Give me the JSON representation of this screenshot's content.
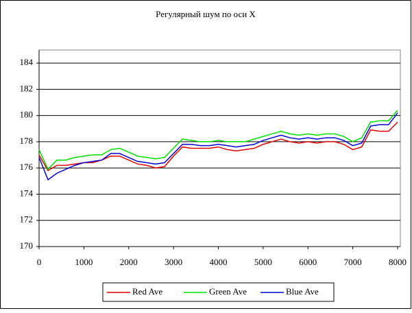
{
  "chart_data": {
    "type": "line",
    "title": "Регулярный шум по оси X",
    "x": [
      0,
      200,
      400,
      600,
      800,
      1000,
      1200,
      1400,
      1600,
      1800,
      2000,
      2200,
      2400,
      2600,
      2800,
      3000,
      3200,
      3400,
      3600,
      3800,
      4000,
      4200,
      4400,
      4600,
      4800,
      5000,
      5200,
      5400,
      5600,
      5800,
      6000,
      6200,
      6400,
      6600,
      6800,
      7000,
      7200,
      7400,
      7600,
      7800,
      8000
    ],
    "series": [
      {
        "name": "Red Ave",
        "color": "#e00000",
        "values": [
          177.0,
          175.8,
          176.2,
          176.2,
          176.3,
          176.4,
          176.4,
          176.6,
          176.9,
          176.9,
          176.6,
          176.3,
          176.2,
          176.0,
          176.1,
          176.9,
          177.6,
          177.5,
          177.5,
          177.5,
          177.6,
          177.4,
          177.3,
          177.4,
          177.5,
          177.8,
          178.0,
          178.2,
          178.0,
          177.9,
          178.0,
          177.9,
          178.0,
          178.0,
          177.8,
          177.4,
          177.6,
          178.9,
          178.8,
          178.8,
          179.5
        ]
      },
      {
        "name": "Green Ave",
        "color": "#00e000",
        "values": [
          177.4,
          175.9,
          176.6,
          176.6,
          176.8,
          176.9,
          177.0,
          177.0,
          177.4,
          177.5,
          177.2,
          176.9,
          176.8,
          176.7,
          176.8,
          177.5,
          178.2,
          178.1,
          178.0,
          178.0,
          178.1,
          178.0,
          178.0,
          178.0,
          178.2,
          178.4,
          178.6,
          178.8,
          178.6,
          178.5,
          178.6,
          178.5,
          178.6,
          178.6,
          178.4,
          178.0,
          178.3,
          179.5,
          179.6,
          179.6,
          180.4
        ]
      },
      {
        "name": "Blue Ave",
        "color": "#0000d0",
        "values": [
          176.8,
          175.1,
          175.6,
          175.9,
          176.2,
          176.4,
          176.5,
          176.6,
          177.1,
          177.1,
          176.8,
          176.5,
          176.4,
          176.3,
          176.4,
          177.1,
          177.8,
          177.8,
          177.7,
          177.7,
          177.8,
          177.7,
          177.6,
          177.7,
          177.8,
          178.1,
          178.3,
          178.5,
          178.3,
          178.2,
          178.3,
          178.2,
          178.3,
          178.3,
          178.1,
          177.7,
          177.9,
          179.2,
          179.3,
          179.3,
          180.2
        ]
      }
    ],
    "xlim": [
      0,
      8000
    ],
    "xticks": [
      0,
      1000,
      2000,
      3000,
      4000,
      5000,
      6000,
      7000,
      8000
    ],
    "ylim": [
      170,
      185
    ],
    "yticks": [
      170,
      172,
      174,
      176,
      178,
      180,
      182,
      184
    ],
    "grid": true,
    "legend": "bottom"
  }
}
